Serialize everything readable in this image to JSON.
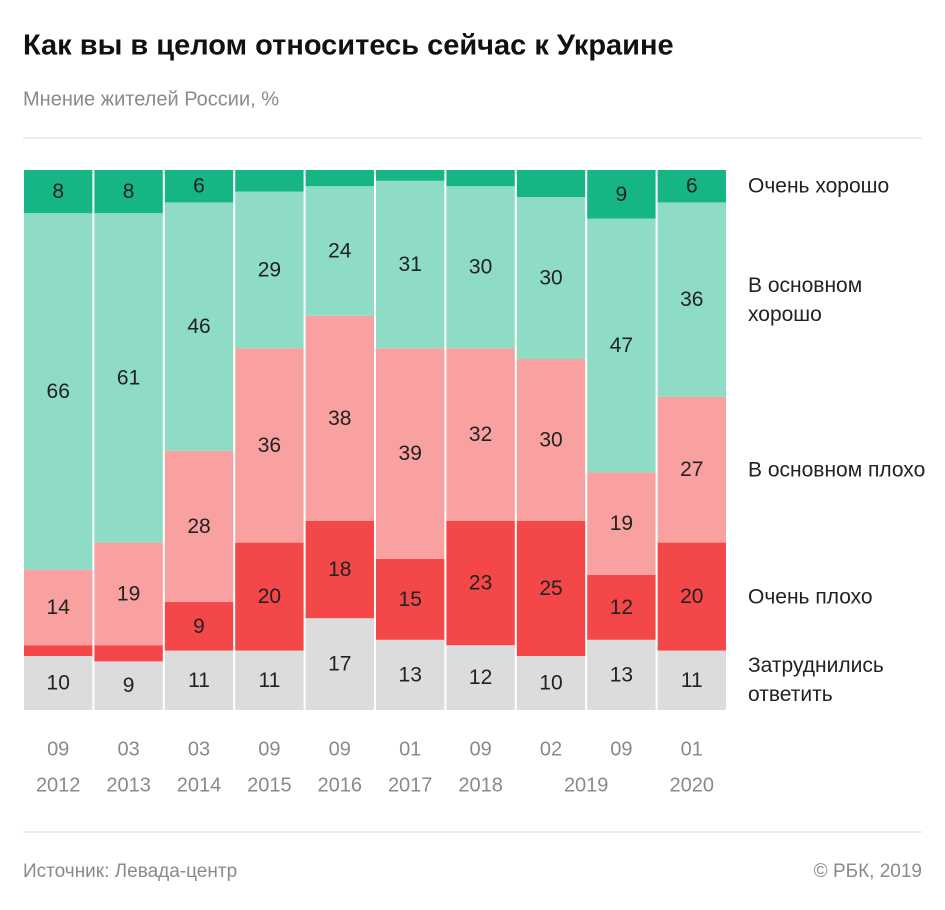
{
  "chart_data": {
    "type": "stacked_bar",
    "title": "Как вы в целом относитесь сейчас к Украине",
    "subtitle": "Мнение жителей России, %",
    "source": "Источник: Левада-центр",
    "copyright": "© РБК, 2019",
    "categories": [
      "09",
      "03",
      "03",
      "09",
      "09",
      "01",
      "09",
      "02",
      "09",
      "01"
    ],
    "years": [
      "2012",
      "2013",
      "2014",
      "2015",
      "2016",
      "2017",
      "2018",
      null,
      "2019",
      "2020"
    ],
    "ylim": [
      0,
      100
    ],
    "series": [
      {
        "name": "Затруднились ответить",
        "color": "#dcdcdc",
        "values": [
          10,
          9,
          11,
          11,
          17,
          13,
          12,
          10,
          13,
          11
        ],
        "value_labels": [
          10,
          9,
          11,
          11,
          17,
          13,
          12,
          10,
          13,
          11
        ]
      },
      {
        "name": "Очень плохо",
        "color": "#f4474a",
        "values": [
          2,
          3,
          9,
          20,
          18,
          15,
          23,
          25,
          12,
          20
        ],
        "value_labels": [
          null,
          null,
          9,
          20,
          18,
          15,
          23,
          25,
          12,
          20
        ]
      },
      {
        "name": "В основном плохо",
        "color": "#f9a1a0",
        "values": [
          14,
          19,
          28,
          36,
          38,
          39,
          32,
          30,
          19,
          27
        ],
        "value_labels": [
          14,
          19,
          28,
          36,
          38,
          39,
          32,
          30,
          19,
          27
        ]
      },
      {
        "name": "В основном хорошо",
        "color": "#8edcc5",
        "values": [
          66,
          61,
          46,
          29,
          24,
          31,
          30,
          30,
          47,
          36
        ],
        "value_labels": [
          66,
          61,
          46,
          29,
          24,
          31,
          30,
          30,
          47,
          36
        ]
      },
      {
        "name": "Очень хорошо",
        "color": "#16b585",
        "values": [
          8,
          8,
          6,
          4,
          3,
          2,
          3,
          5,
          9,
          6
        ],
        "value_labels": [
          8,
          8,
          6,
          null,
          null,
          null,
          null,
          null,
          9,
          6
        ]
      }
    ]
  }
}
